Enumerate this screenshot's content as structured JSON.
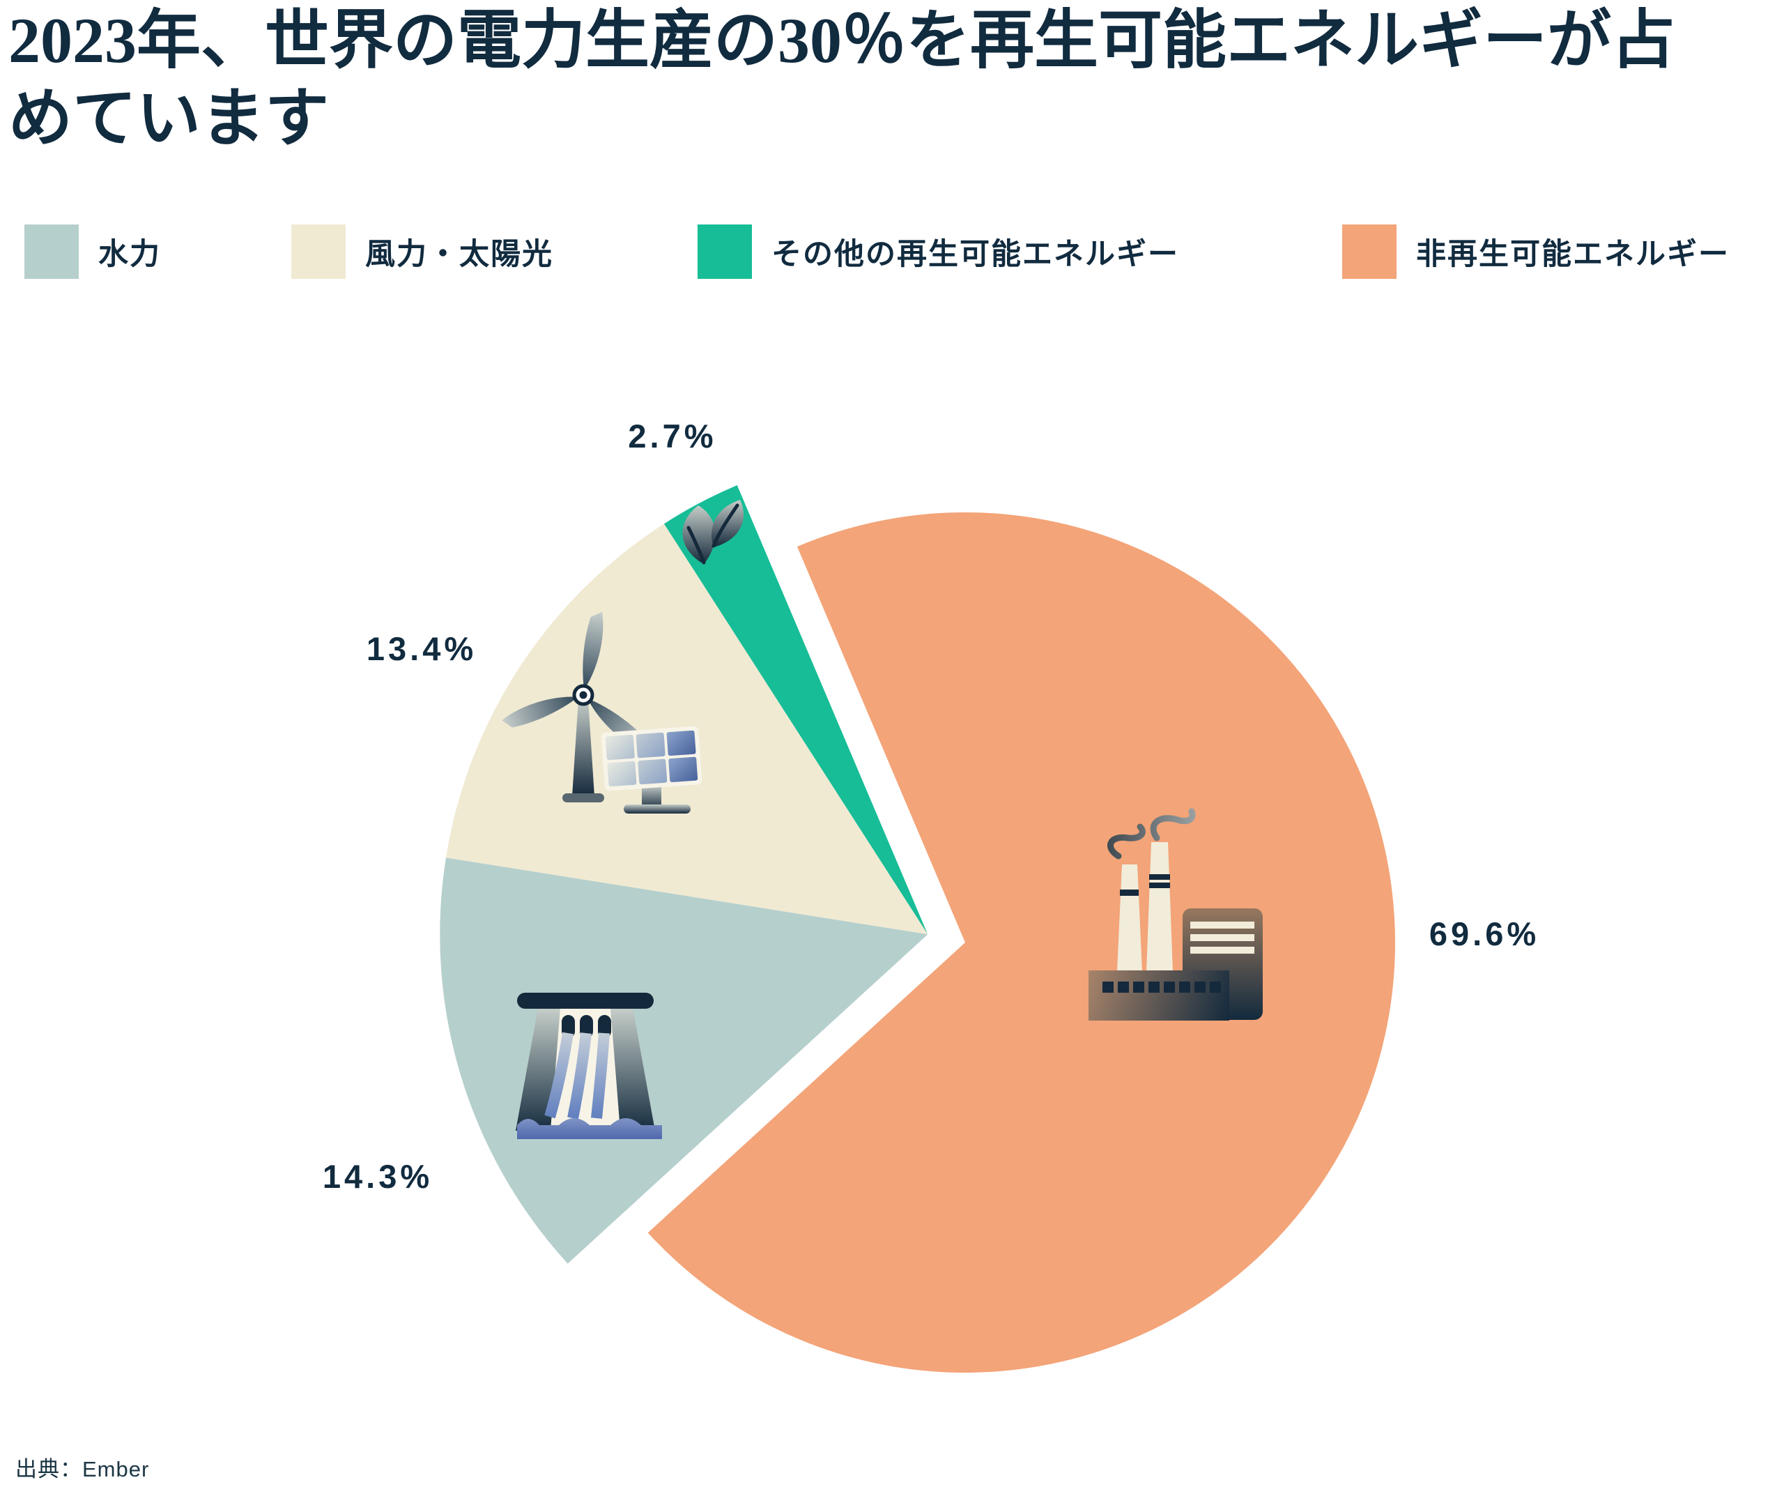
{
  "title": "2023年、世界の電力生産の30％を再生可能エネルギーが占めています",
  "legend": {
    "items": [
      {
        "label": "水力",
        "color": "#B5CFCC"
      },
      {
        "label": "風力・太陽光",
        "color": "#F0EAD3"
      },
      {
        "label": "その他の再生可能エネルギー",
        "color": "#17BD96"
      },
      {
        "label": "非再生可能エネルギー",
        "color": "#F3A478"
      }
    ]
  },
  "source": "出典：Ember",
  "chart_data": {
    "type": "pie",
    "title": "2023年、世界の電力生産の30％を再生可能エネルギーが占めています",
    "unit": "%",
    "legend_position": "top",
    "slices": [
      {
        "label": "その他の再生可能エネルギー",
        "value": 2.7,
        "display": "2.7%",
        "color": "#17BD96",
        "group": "renewable",
        "icon": "leaf"
      },
      {
        "label": "風力・太陽光",
        "value": 13.4,
        "display": "13.4%",
        "color": "#F0EAD3",
        "group": "renewable",
        "icon": "wind-turbine-and-solar-panel"
      },
      {
        "label": "水力",
        "value": 14.3,
        "display": "14.3%",
        "color": "#B5CFCC",
        "group": "renewable",
        "icon": "hydro-dam"
      },
      {
        "label": "非再生可能エネルギー",
        "value": 69.6,
        "display": "69.6%",
        "color": "#F3A478",
        "group": "non_renewable",
        "icon": "factory"
      }
    ],
    "source": "出典：Ember"
  }
}
